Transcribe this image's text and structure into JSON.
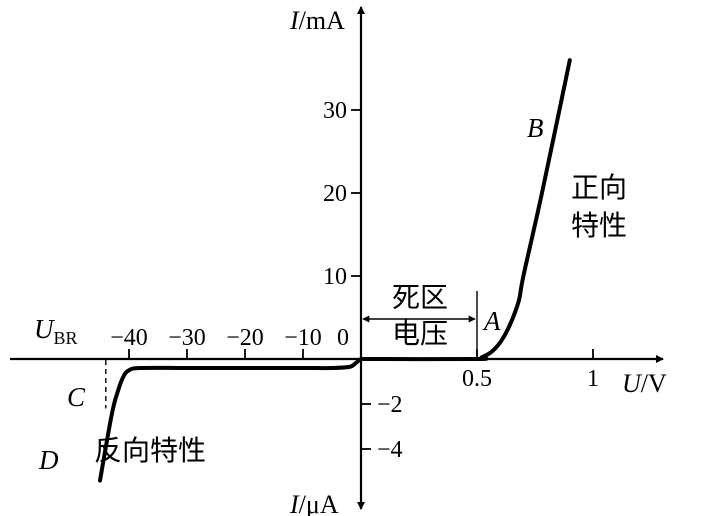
{
  "chart_data": {
    "type": "line",
    "title": "",
    "xlabel": {
      "var": "U",
      "unit": "/V"
    },
    "ylabel_positive": {
      "var": "I",
      "unit": "/mA"
    },
    "ylabel_negative": {
      "var": "I",
      "unit": "/μA"
    },
    "x_positive_ticks": [
      {
        "value": 0.5,
        "label": "0.5"
      },
      {
        "value": 1,
        "label": "1"
      }
    ],
    "x_negative_ticks": [
      {
        "value": -40,
        "label": "−40"
      },
      {
        "value": -30,
        "label": "−30"
      },
      {
        "value": -20,
        "label": "−20"
      },
      {
        "value": -10,
        "label": "−10"
      },
      {
        "value": 0,
        "label": "0"
      }
    ],
    "y_positive_ticks": [
      {
        "value": 10,
        "label": "10"
      },
      {
        "value": 20,
        "label": "20"
      },
      {
        "value": 30,
        "label": "30"
      }
    ],
    "y_negative_ticks": [
      {
        "value": -2,
        "label": "−2"
      },
      {
        "value": -4,
        "label": "−4"
      }
    ],
    "ranges": {
      "positive_x": [
        0,
        1.25
      ],
      "negative_x": [
        -45,
        0
      ],
      "positive_y": [
        0,
        40
      ],
      "negative_y": [
        -6,
        0
      ]
    },
    "forward_series": {
      "x": [
        0,
        0.5,
        0.52,
        0.56,
        0.6,
        0.64,
        0.68,
        0.7,
        0.78,
        0.9
      ],
      "y": [
        0,
        0,
        0.2,
        0.8,
        2,
        4,
        7,
        10,
        20,
        36
      ]
    },
    "reverse_series": {
      "x": [
        0,
        -0.3,
        -1,
        -2,
        -5,
        -10,
        -20,
        -30,
        -38,
        -40,
        -41,
        -42,
        -43,
        -45
      ],
      "y": [
        0,
        -0.05,
        -0.2,
        -0.35,
        -0.4,
        -0.4,
        -0.4,
        -0.4,
        -0.4,
        -0.5,
        -0.8,
        -1.5,
        -2.5,
        -5.4
      ]
    },
    "threshold_x": 0.5,
    "breakdown_x": -44,
    "annotations": {
      "dead_zone_1": "死区",
      "dead_zone_2": "电压",
      "forward_1": "正向",
      "forward_2": "特性",
      "reverse": "反向特性",
      "ubr_main": "U",
      "ubr_sub": "BR",
      "point_a": "A",
      "point_b": "B",
      "point_c": "C",
      "point_d": "D"
    },
    "grid": false,
    "legend": "none"
  }
}
